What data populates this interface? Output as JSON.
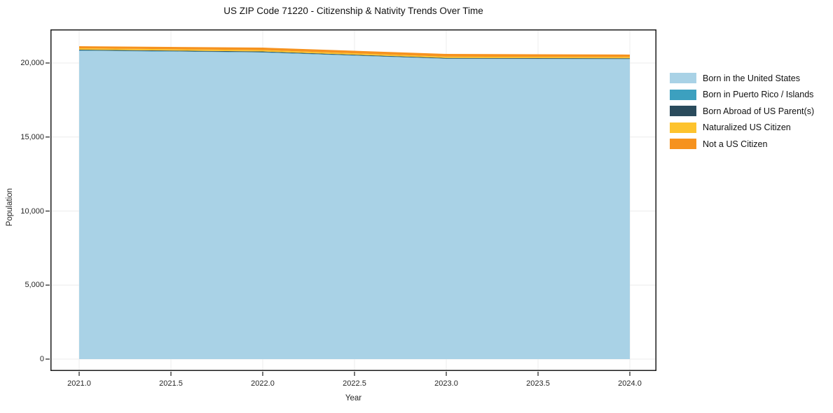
{
  "chart_data": {
    "type": "area",
    "stacked": true,
    "title": "US ZIP Code 71220 - Citizenship & Nativity Trends Over Time",
    "xlabel": "Year",
    "ylabel": "Population",
    "x": [
      2021,
      2022,
      2023,
      2024
    ],
    "series": [
      {
        "name": "Born in the United States",
        "color": "#a9d2e6",
        "values": [
          20830,
          20710,
          20280,
          20260
        ]
      },
      {
        "name": "Born in Puerto Rico / Islands",
        "color": "#3ca0bf",
        "values": [
          25,
          25,
          20,
          20
        ]
      },
      {
        "name": "Born Abroad of US Parent(s)",
        "color": "#2a4b5c",
        "values": [
          45,
          45,
          40,
          40
        ]
      },
      {
        "name": "Naturalized US Citizen",
        "color": "#fdc32d",
        "values": [
          95,
          95,
          90,
          90
        ]
      },
      {
        "name": "Not a US Citizen",
        "color": "#f6921e",
        "values": [
          140,
          165,
          185,
          160
        ]
      }
    ],
    "x_ticks": [
      2021.0,
      2021.5,
      2022.0,
      2022.5,
      2023.0,
      2023.5,
      2024.0
    ],
    "x_tick_labels": [
      "2021.0",
      "2021.5",
      "2022.0",
      "2022.5",
      "2023.0",
      "2023.5",
      "2024.0"
    ],
    "y_ticks": [
      0,
      5000,
      10000,
      15000,
      20000
    ],
    "y_tick_labels": [
      "0",
      "5,000",
      "10,000",
      "15,000",
      "20,000"
    ],
    "xlim": [
      2020.84,
      2024.15
    ],
    "ylim": [
      0,
      22300
    ],
    "grid": true,
    "legend_position": "right",
    "colors": {
      "gridline": "#ececec",
      "plot_border": "#1c1c1c",
      "background": "#ffffff"
    }
  }
}
